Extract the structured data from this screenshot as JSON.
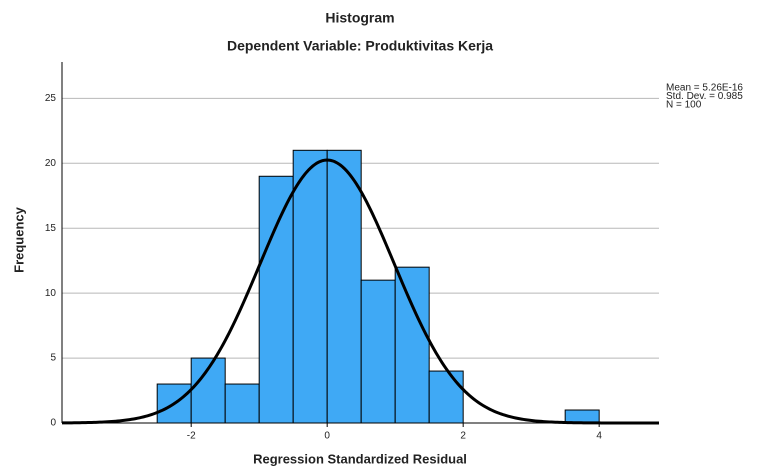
{
  "chart_data": {
    "type": "histogram",
    "title": "Histogram",
    "subtitle": "Dependent Variable: Produktivitas Kerja",
    "x_label": "Regression Standardized Residual",
    "y_label": "Frequency",
    "bins": [
      -2.5,
      -2,
      -1.5,
      -1,
      -0.5,
      0,
      0.5,
      1,
      1.5,
      2,
      2.5,
      3,
      3.5,
      4
    ],
    "counts": [
      3,
      5,
      3,
      19,
      21,
      21,
      11,
      12,
      4,
      0,
      0,
      0,
      1
    ],
    "color": "#3fa9f5",
    "curve_color": "#000000",
    "xlim": [
      -3.9,
      4.88
    ],
    "xticks": [
      -2,
      0,
      2,
      4
    ],
    "ylim": [
      0,
      27.8
    ],
    "yticks": [
      0,
      5,
      10,
      15,
      20,
      25
    ],
    "grid": true,
    "stats": [
      {
        "name": "Mean",
        "value": 5.26e-16,
        "label": "Mean = 5.26E-16"
      },
      {
        "name": "Std. Dev.",
        "value": 0.985,
        "label": "Std. Dev. = 0.985"
      },
      {
        "name": "N",
        "value": 100,
        "label": "N = 100"
      }
    ]
  }
}
